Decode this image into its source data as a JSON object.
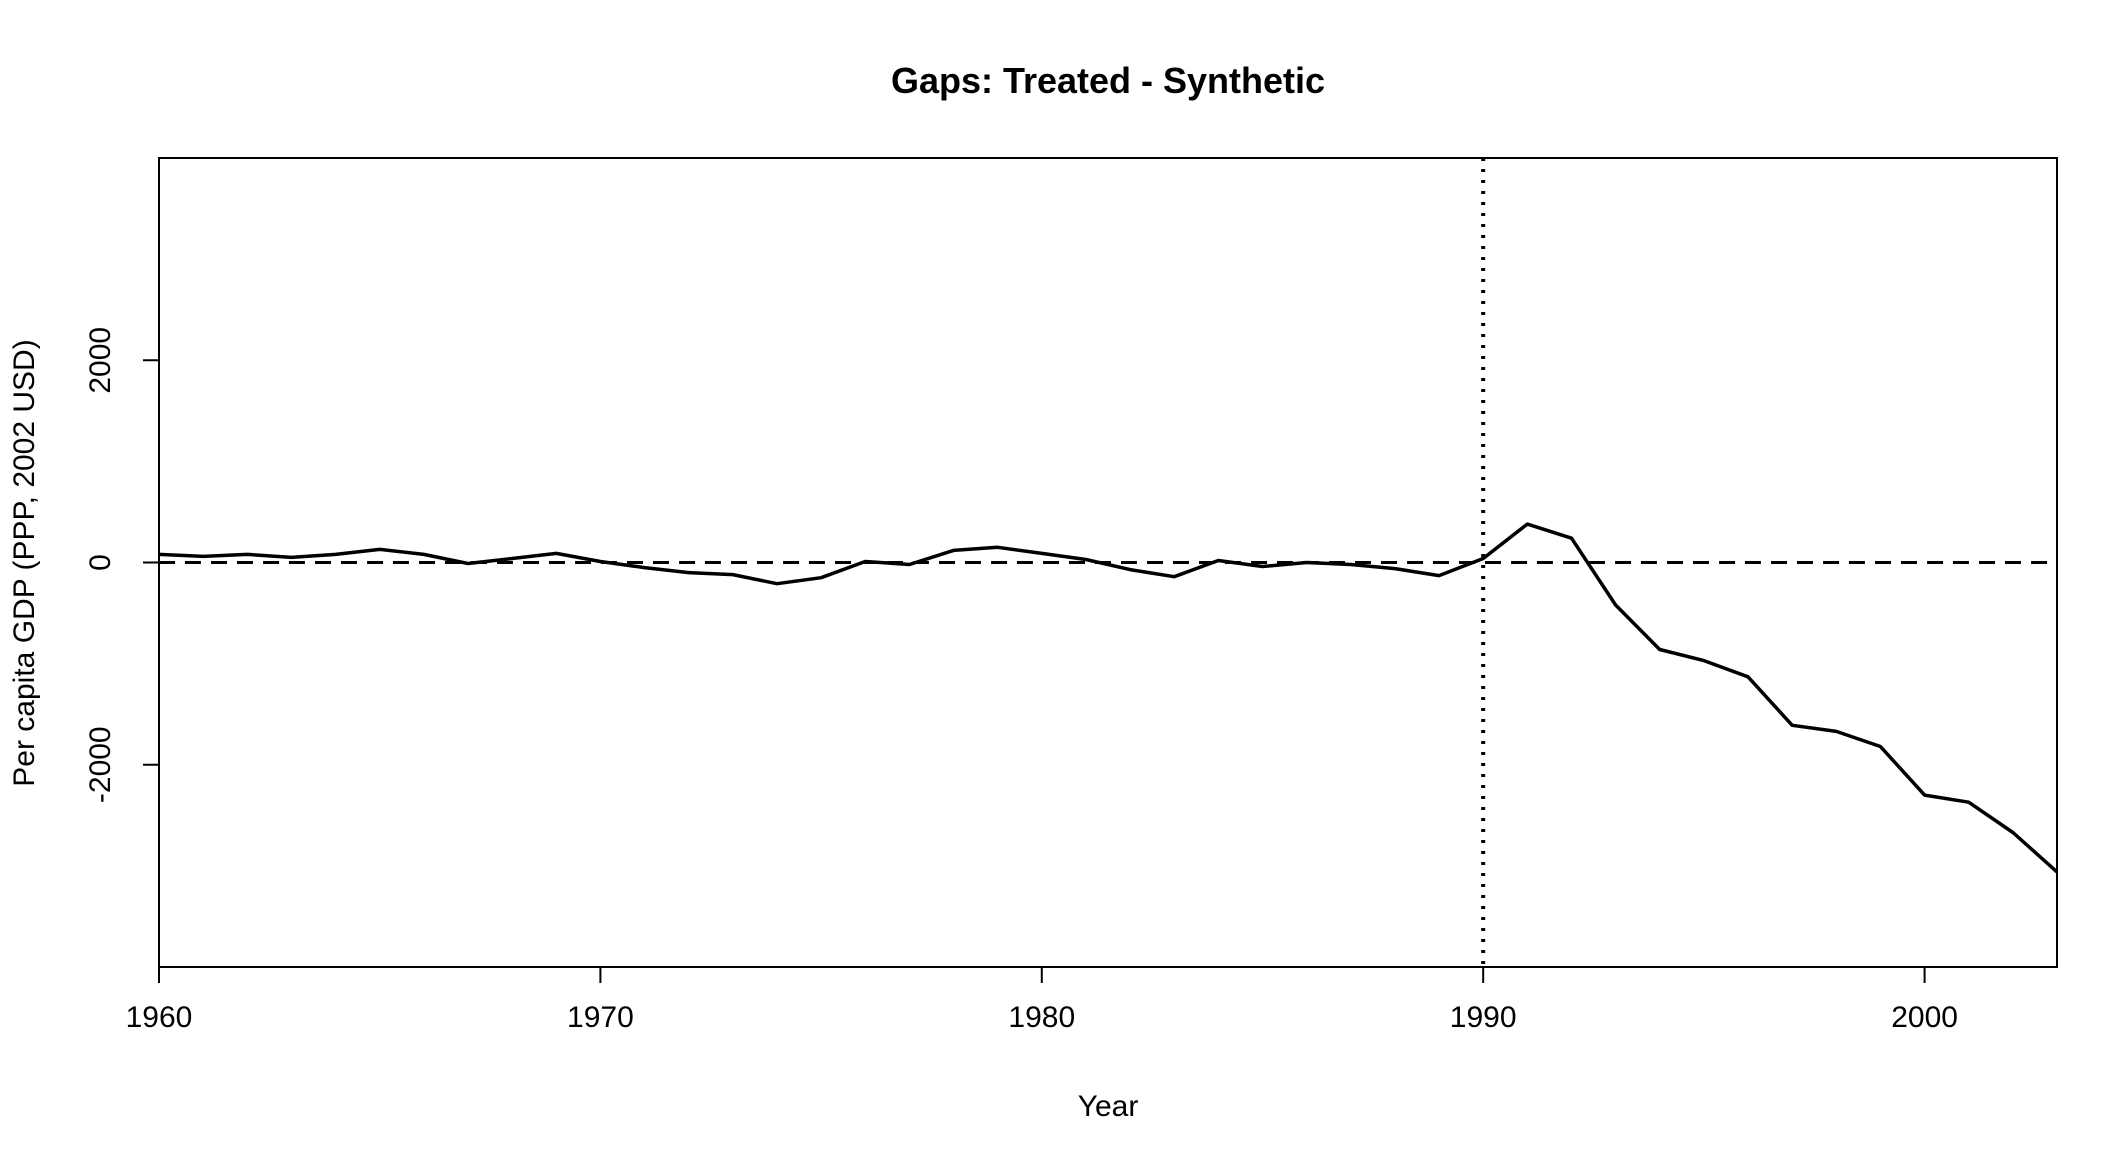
{
  "chart_data": {
    "type": "line",
    "title": "Gaps: Treated - Synthetic",
    "xlabel": "Year",
    "ylabel": "Per capita GDP (PPP, 2002 USD)",
    "xlim": [
      1960,
      2003
    ],
    "ylim": [
      -4000,
      4000
    ],
    "x_ticks": [
      1960,
      1970,
      1980,
      1990,
      2000
    ],
    "y_ticks": [
      -2000,
      0,
      2000
    ],
    "x_tick_labels": [
      "1960",
      "1970",
      "1980",
      "1990",
      "2000"
    ],
    "y_tick_labels": [
      "-2000",
      "0",
      "2000"
    ],
    "grid": false,
    "legend": "none",
    "reference_lines": [
      {
        "orientation": "horizontal",
        "value": 0,
        "style": "dashed"
      },
      {
        "orientation": "vertical",
        "value": 1990,
        "style": "dotted"
      }
    ],
    "series": [
      {
        "x": [
          1960,
          1961,
          1962,
          1963,
          1964,
          1965,
          1966,
          1967,
          1968,
          1969,
          1970,
          1971,
          1972,
          1973,
          1974,
          1975,
          1976,
          1977,
          1978,
          1979,
          1980,
          1981,
          1982,
          1983,
          1984,
          1985,
          1986,
          1987,
          1988,
          1989,
          1990,
          1991,
          1992,
          1993,
          1994,
          1995,
          1996,
          1997,
          1998,
          1999,
          2000,
          2001,
          2002,
          2003
        ],
        "values": [
          80,
          60,
          80,
          50,
          80,
          130,
          80,
          -10,
          40,
          90,
          10,
          -50,
          -100,
          -120,
          -210,
          -150,
          10,
          -20,
          120,
          150,
          90,
          30,
          -70,
          -140,
          20,
          -40,
          0,
          -20,
          -60,
          -130,
          40,
          380,
          240,
          -420,
          -860,
          -970,
          -1130,
          -1610,
          -1670,
          -1820,
          -2300,
          -2370,
          -2670,
          -3060
        ],
        "color": "#000000"
      }
    ]
  }
}
